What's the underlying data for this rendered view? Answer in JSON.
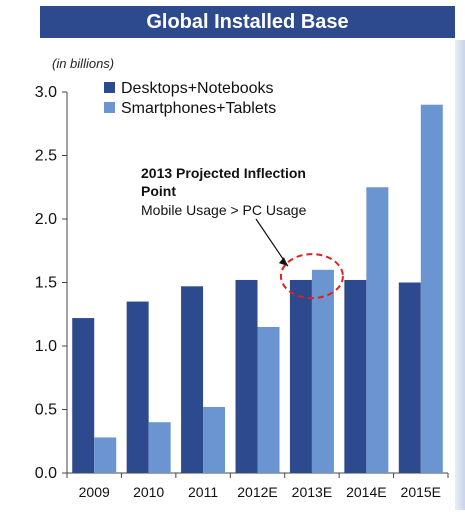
{
  "chart_data": {
    "type": "bar",
    "title": "Global Installed Base",
    "unit_label": "(in billions)",
    "categories": [
      "2009",
      "2010",
      "2011",
      "2012E",
      "2013E",
      "2014E",
      "2015E"
    ],
    "series": [
      {
        "name": "Desktops+Notebooks",
        "color": "#2e4a8e",
        "values": [
          1.22,
          1.35,
          1.47,
          1.52,
          1.52,
          1.52,
          1.5
        ]
      },
      {
        "name": "Smartphones+Tablets",
        "color": "#6b95d1",
        "values": [
          0.28,
          0.4,
          0.52,
          1.15,
          1.6,
          2.25,
          2.9
        ]
      }
    ],
    "ylim": [
      0,
      3.0
    ],
    "yticks": [
      "0.0",
      "0.5",
      "1.0",
      "1.5",
      "2.0",
      "2.5",
      "3.0"
    ],
    "legend_position": "top-left",
    "grid": false,
    "annotation": {
      "title_line1": "2013 Projected Inflection",
      "title_line2": "Point",
      "subtitle": "Mobile Usage > PC Usage",
      "target_category": "2013E",
      "highlight_color": "#e02020"
    }
  }
}
